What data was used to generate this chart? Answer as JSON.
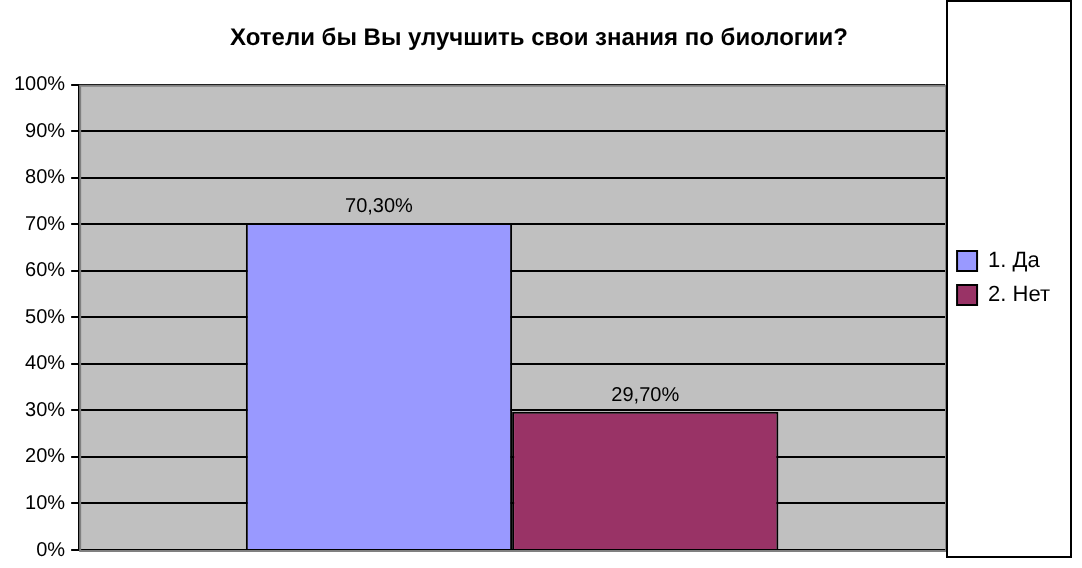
{
  "chart_data": {
    "type": "bar",
    "title": "Хотели бы Вы улучшить свои знания по биологии?",
    "categories": [
      null
    ],
    "series": [
      {
        "name": "1. Да",
        "color": "#9999ff",
        "values": [
          70.3
        ],
        "value_labels": [
          "70,30%"
        ]
      },
      {
        "name": "2. Нет",
        "color": "#993366",
        "values": [
          29.7
        ],
        "value_labels": [
          "29,70%"
        ]
      }
    ],
    "ylim": [
      0,
      100
    ],
    "yticks": [
      {
        "value": 0,
        "label": "0%"
      },
      {
        "value": 10,
        "label": "10%"
      },
      {
        "value": 20,
        "label": "20%"
      },
      {
        "value": 30,
        "label": "30%"
      },
      {
        "value": 40,
        "label": "40%"
      },
      {
        "value": 50,
        "label": "50%"
      },
      {
        "value": 60,
        "label": "60%"
      },
      {
        "value": 70,
        "label": "70%"
      },
      {
        "value": 80,
        "label": "80%"
      },
      {
        "value": 90,
        "label": "90%"
      },
      {
        "value": 100,
        "label": "100%"
      }
    ],
    "grid": "y",
    "legend": "right"
  }
}
